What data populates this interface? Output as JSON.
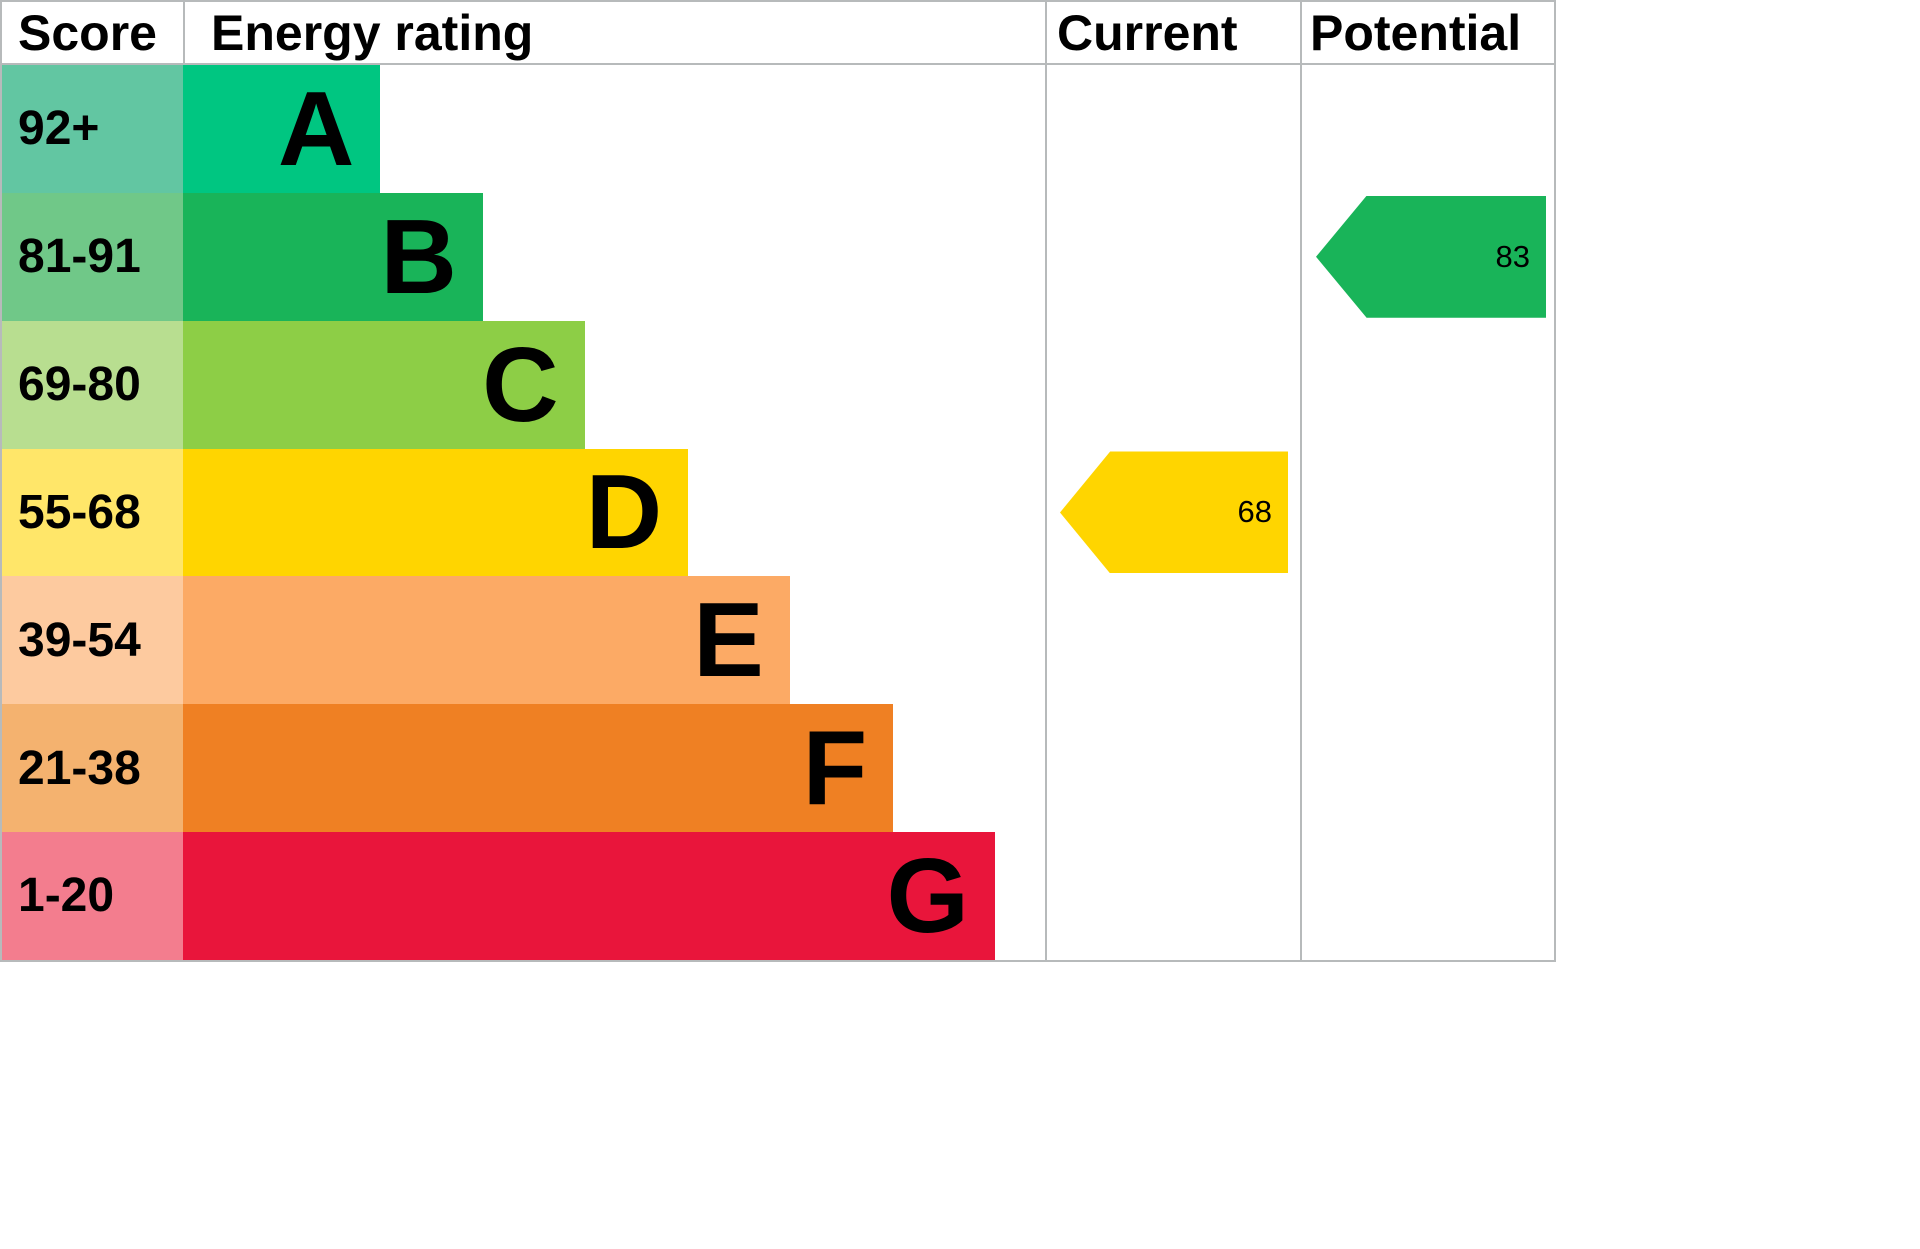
{
  "chart_data": {
    "type": "bar",
    "title": "Energy rating",
    "columns": [
      "Score",
      "Energy rating",
      "Current",
      "Potential"
    ],
    "bands": [
      {
        "score_range": "92+",
        "rating": "A"
      },
      {
        "score_range": "81-91",
        "rating": "B"
      },
      {
        "score_range": "69-80",
        "rating": "C"
      },
      {
        "score_range": "55-68",
        "rating": "D"
      },
      {
        "score_range": "39-54",
        "rating": "E"
      },
      {
        "score_range": "21-38",
        "rating": "F"
      },
      {
        "score_range": "1-20",
        "rating": "G"
      }
    ],
    "current": {
      "value": 68,
      "band": "D"
    },
    "potential": {
      "value": 83,
      "band": "B"
    }
  },
  "header": {
    "score": "Score",
    "rating": "Energy rating",
    "current": "Current",
    "potential": "Potential"
  },
  "bands": [
    {
      "score": "92+",
      "letter": "A",
      "bar_color": "#00c681",
      "score_color": "#62c6a2",
      "bar_width_pct": 22.9
    },
    {
      "score": "81-91",
      "letter": "B",
      "bar_color": "#19b459",
      "score_color": "#70c888",
      "bar_width_pct": 34.8
    },
    {
      "score": "69-80",
      "letter": "C",
      "bar_color": "#8dce46",
      "score_color": "#b8de90",
      "bar_width_pct": 46.6
    },
    {
      "score": "55-68",
      "letter": "D",
      "bar_color": "#ffd500",
      "score_color": "#ffe669",
      "bar_width_pct": 58.6
    },
    {
      "score": "39-54",
      "letter": "E",
      "bar_color": "#fcaa65",
      "score_color": "#fdca9f",
      "bar_width_pct": 70.4
    },
    {
      "score": "21-38",
      "letter": "F",
      "bar_color": "#ef8023",
      "score_color": "#f4b26f",
      "bar_width_pct": 82.4
    },
    {
      "score": "1-20",
      "letter": "G",
      "bar_color": "#e9153b",
      "score_color": "#f37d8e",
      "bar_width_pct": 94.2
    }
  ],
  "markers": {
    "current": {
      "value": "68",
      "color": "#ffd500",
      "band_index": 3
    },
    "potential": {
      "value": "83",
      "color": "#19b459",
      "band_index": 1
    }
  }
}
